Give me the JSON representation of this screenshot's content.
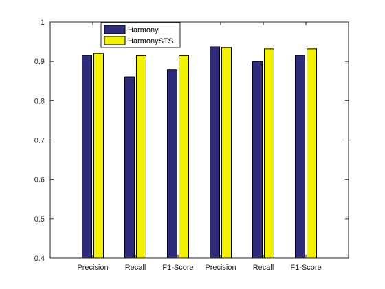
{
  "chart_data": {
    "type": "bar",
    "categories": [
      "Precision",
      "Recall",
      "F1-Score",
      "Precision",
      "Recall",
      "F1-Score"
    ],
    "series": [
      {
        "name": "Harmony",
        "color": "#2e2a7c",
        "values": [
          0.915,
          0.86,
          0.878,
          0.937,
          0.9,
          0.915
        ]
      },
      {
        "name": "HarmonySTS",
        "color": "#f2f200",
        "values": [
          0.92,
          0.915,
          0.915,
          0.935,
          0.932,
          0.932
        ]
      }
    ],
    "ylim": [
      0.4,
      1.0
    ],
    "yticks": [
      "0.4",
      "0.5",
      "0.6",
      "0.7",
      "0.8",
      "0.9",
      "1"
    ],
    "grid": false,
    "legend_position": "top-left"
  }
}
